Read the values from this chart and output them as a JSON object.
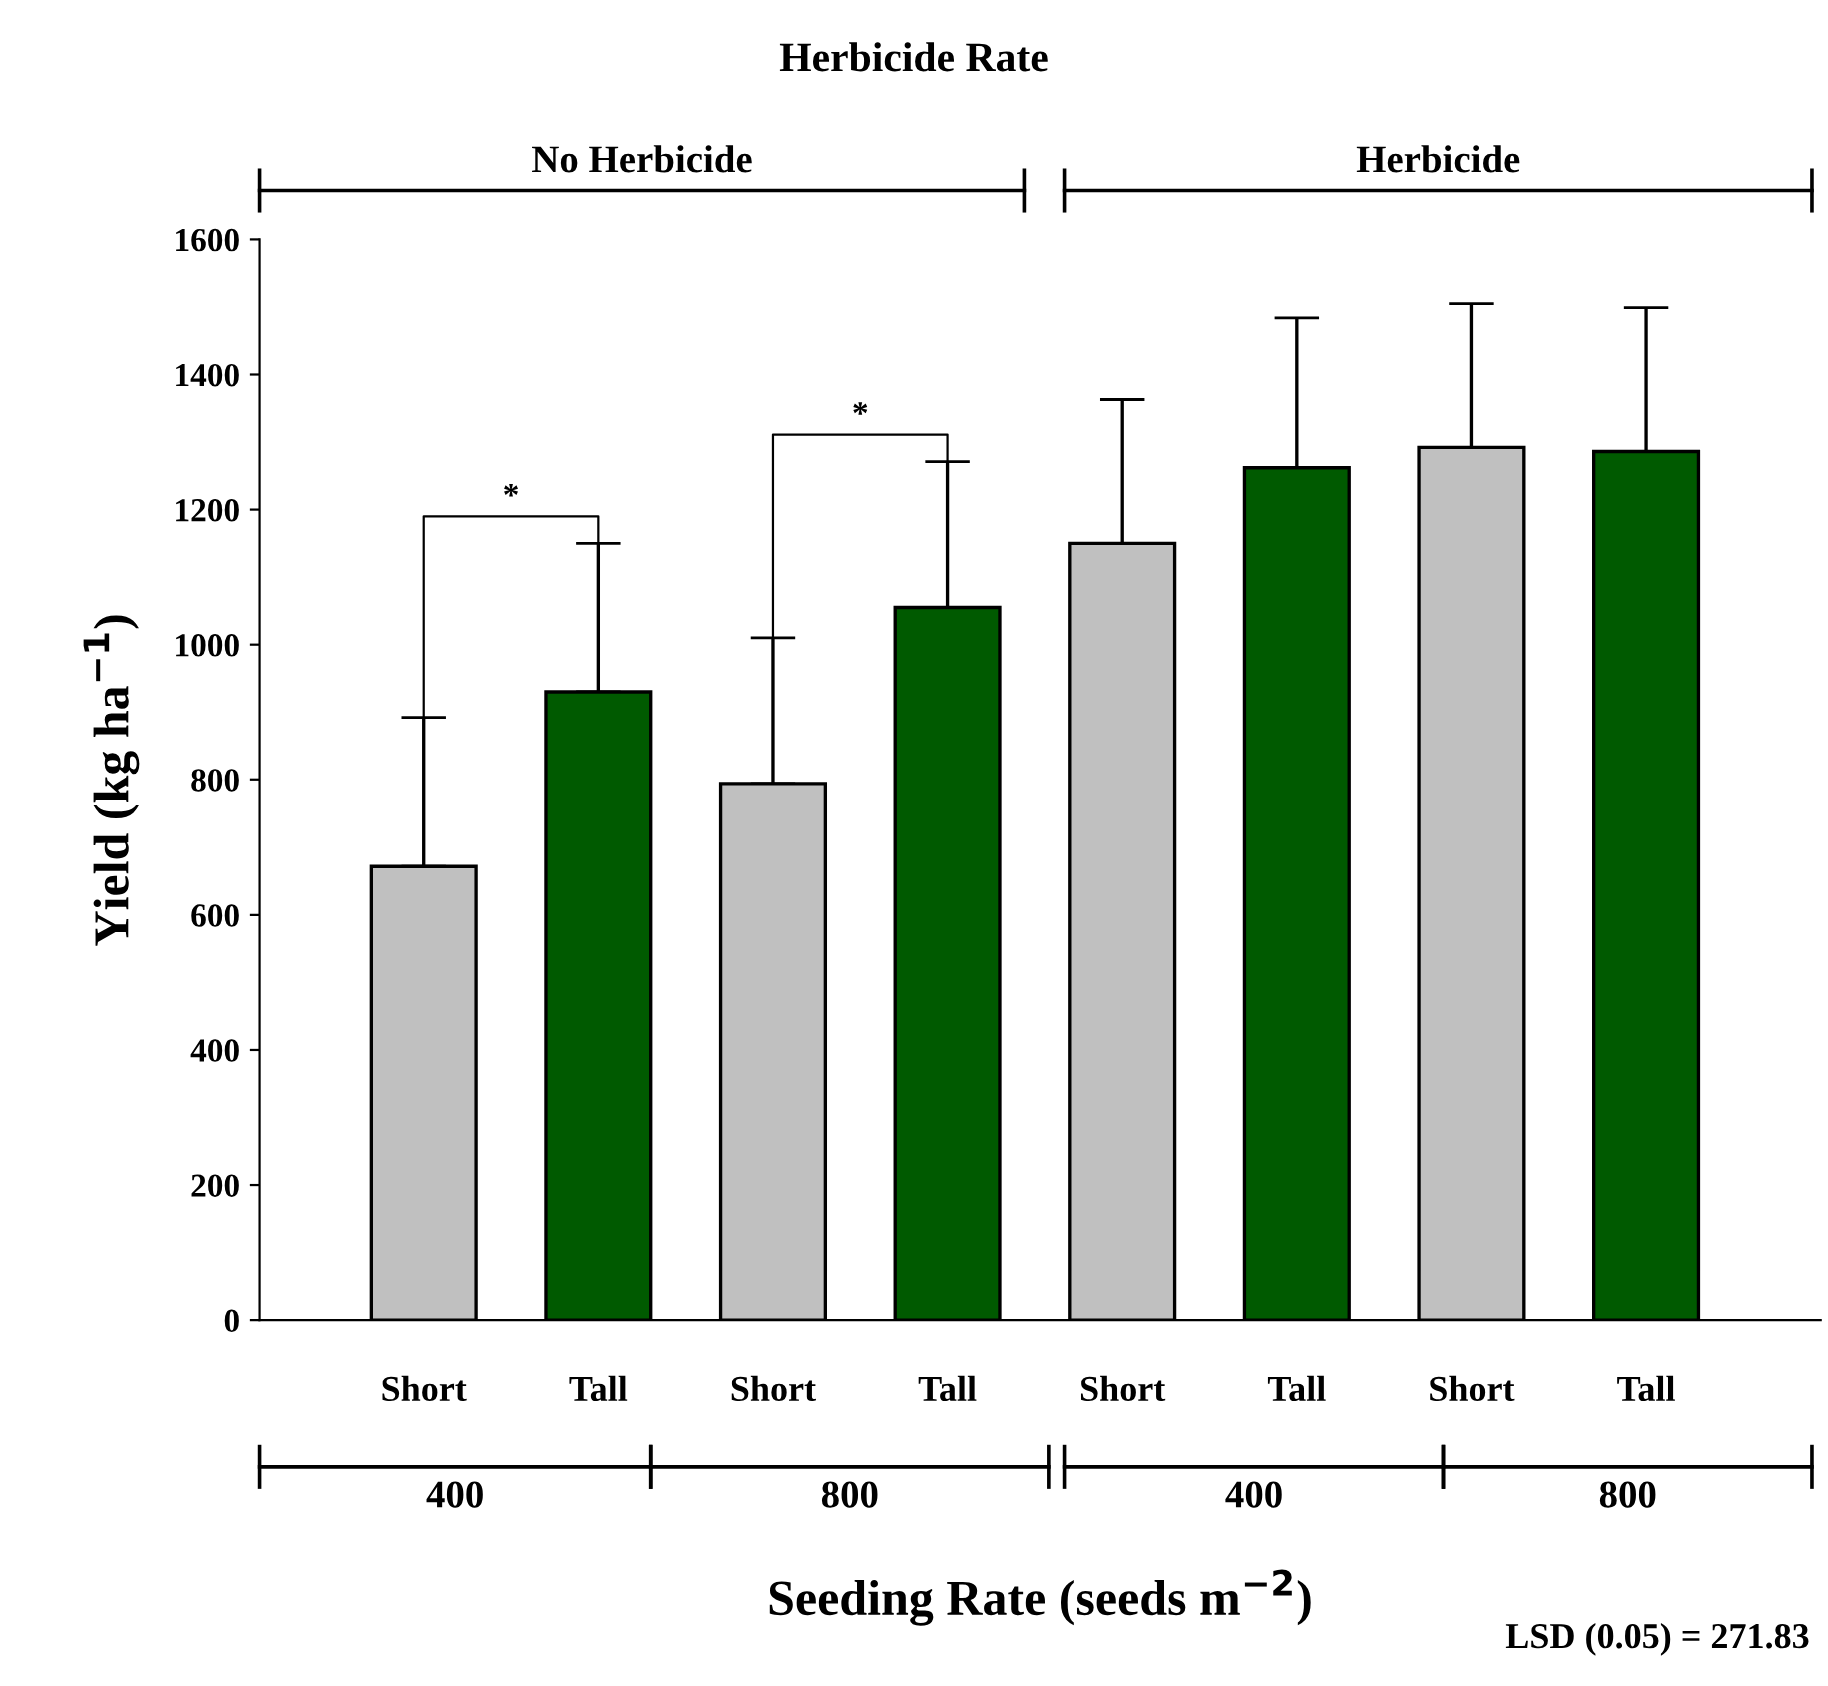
{
  "chart_data": {
    "type": "bar",
    "title": "Herbicide Rate",
    "xlabel": "Seeding Rate (seeds m$^{−2}$)",
    "ylabel": "Yield (kg ha$^{−1}$)",
    "categories": [
      "Short",
      "Tall",
      "Short",
      "Tall",
      "Short",
      "Tall",
      "Short",
      "Tall"
    ],
    "values": [
      672,
      930,
      794,
      1055,
      1150,
      1262,
      1292,
      1286
    ],
    "colors": [
      "#c0c0c0",
      "#005a00",
      "#c0c0c0",
      "#005a00",
      "#c0c0c0",
      "#005a00",
      "#c0c0c0",
      "#005a00"
    ],
    "errors": [
      [
        672,
        892
      ],
      [
        930,
        1150
      ],
      [
        794,
        1010
      ],
      [
        1055,
        1271
      ],
      [
        1150,
        1363
      ],
      [
        1262,
        1484
      ],
      [
        1292,
        1505
      ],
      [
        1286,
        1499
      ]
    ],
    "ylim": [
      0,
      1600
    ],
    "yticks": [
      0,
      200,
      400,
      600,
      800,
      1000,
      1200,
      1400,
      1600
    ],
    "grid": false,
    "legend": false,
    "annotations": [
      "No Herbicide",
      "Herbicide",
      "400",
      "800",
      "400",
      "800",
      "*",
      "*",
      "LSD (0.05) = 271.83"
    ]
  }
}
